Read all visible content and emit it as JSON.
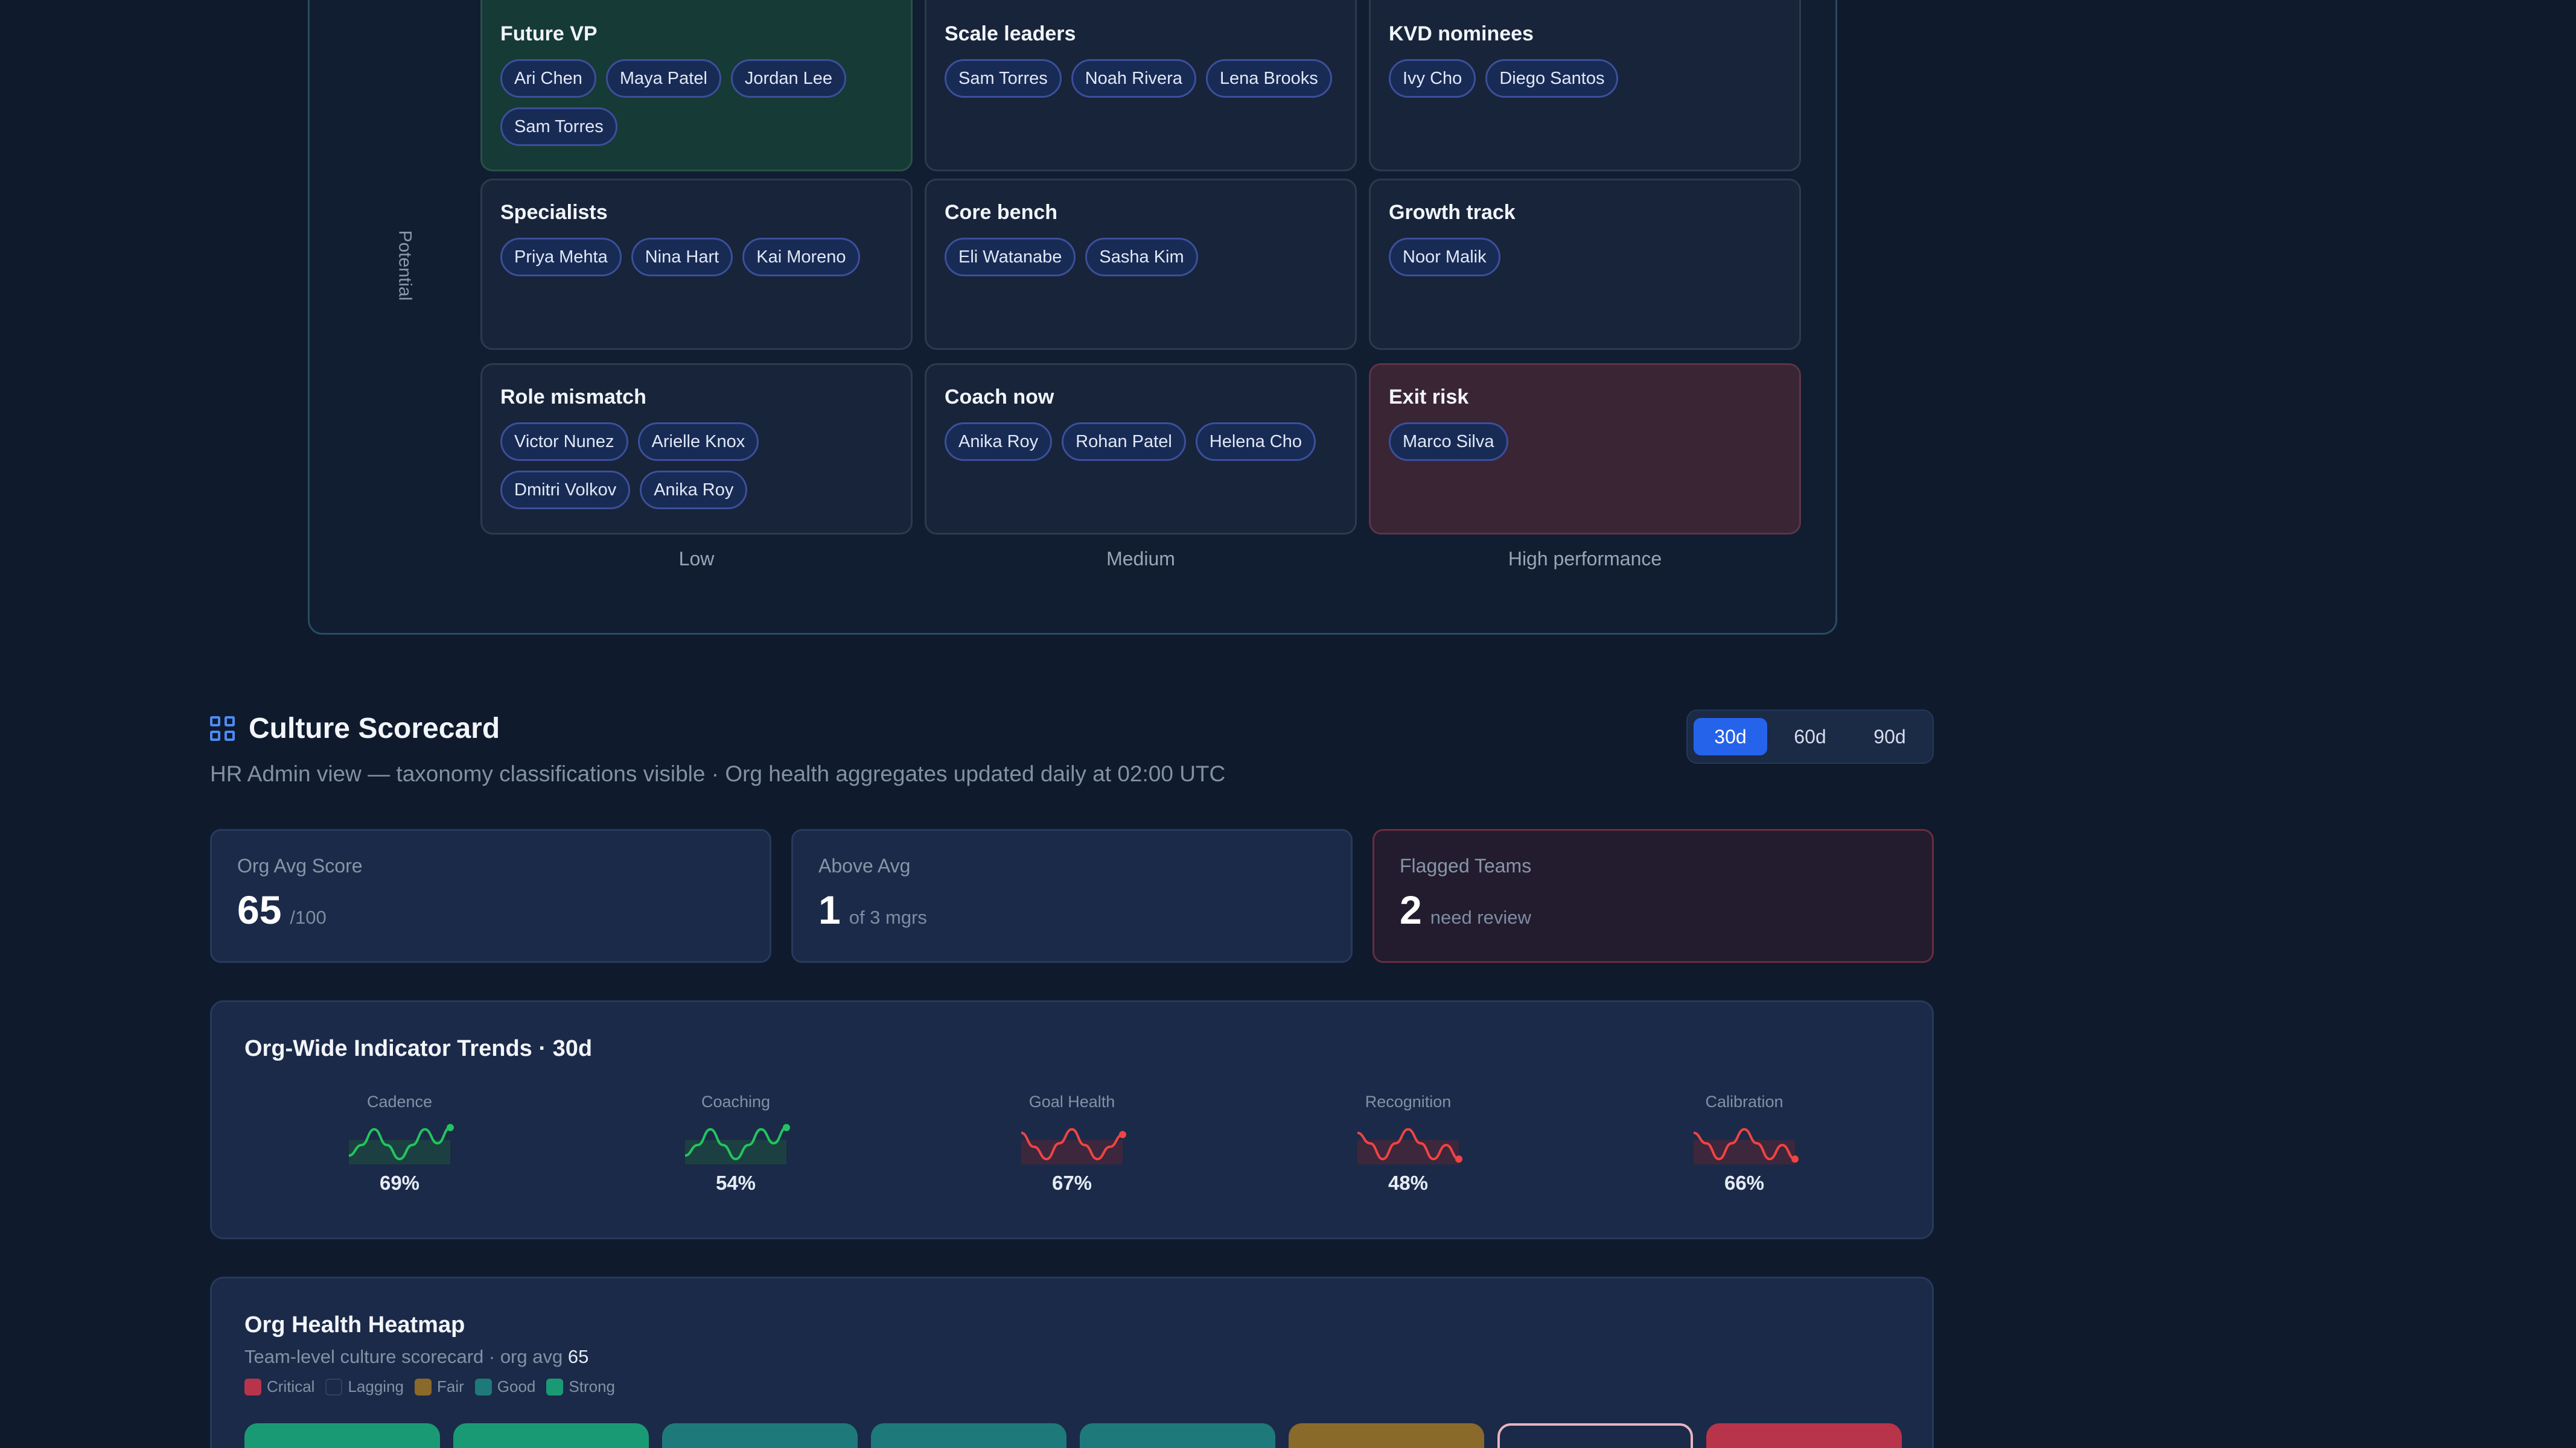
{
  "ninebox": {
    "potential_label": "Potential",
    "rows": [
      [
        {
          "title": "Future VP",
          "people": [
            "Ari Chen",
            "Maya Patel",
            "Jordan Lee",
            "Sam Torres"
          ],
          "tone": "green"
        },
        {
          "title": "Scale leaders",
          "people": [
            "Sam Torres",
            "Noah Rivera",
            "Lena Brooks"
          ],
          "tone": "default"
        },
        {
          "title": "KVD nominees",
          "people": [
            "Ivy Cho",
            "Diego Santos"
          ],
          "tone": "default"
        }
      ],
      [
        {
          "title": "Specialists",
          "people": [
            "Priya Mehta",
            "Nina Hart",
            "Kai Moreno"
          ],
          "tone": "default"
        },
        {
          "title": "Core bench",
          "people": [
            "Eli Watanabe",
            "Sasha Kim"
          ],
          "tone": "default"
        },
        {
          "title": "Growth track",
          "people": [
            "Noor Malik"
          ],
          "tone": "default"
        }
      ],
      [
        {
          "title": "Role mismatch",
          "people": [
            "Victor Nunez",
            "Arielle Knox",
            "Dmitri Volkov",
            "Anika Roy"
          ],
          "tone": "default"
        },
        {
          "title": "Coach now",
          "people": [
            "Anika Roy",
            "Rohan Patel",
            "Helena Cho"
          ],
          "tone": "default"
        },
        {
          "title": "Exit risk",
          "people": [
            "Marco Silva"
          ],
          "tone": "red"
        }
      ]
    ],
    "columns": [
      "Low",
      "Medium",
      "High performance"
    ]
  },
  "scorecard": {
    "title": "Culture Scorecard",
    "subtitle": "HR Admin view — taxonomy classifications visible · Org health aggregates updated daily at 02:00 UTC",
    "ranges": [
      "30d",
      "60d",
      "90d"
    ],
    "active_range": "30d"
  },
  "kpis": [
    {
      "label": "Org Avg Score",
      "value": "65",
      "unit": "/100",
      "flag": false
    },
    {
      "label": "Above Avg",
      "value": "1",
      "unit": "of 3 mgrs",
      "flag": false
    },
    {
      "label": "Flagged Teams",
      "value": "2",
      "unit": "need review",
      "flag": true
    }
  ],
  "trends": {
    "title": "Org-Wide Indicator Trends · 30d",
    "indicators": [
      {
        "label": "Cadence",
        "value": "69%",
        "color": "#22c55e",
        "fill": "#1c4a3f",
        "shape": "up"
      },
      {
        "label": "Coaching",
        "value": "54%",
        "color": "#22c55e",
        "fill": "#1c4a3f",
        "shape": "up"
      },
      {
        "label": "Goal Health",
        "value": "67%",
        "color": "#ef4444",
        "fill": "#4a2738",
        "shape": "mid"
      },
      {
        "label": "Recognition",
        "value": "48%",
        "color": "#ef4444",
        "fill": "#4a2738",
        "shape": "down"
      },
      {
        "label": "Calibration",
        "value": "66%",
        "color": "#ef4444",
        "fill": "#4a2738",
        "shape": "down"
      }
    ]
  },
  "heatmap": {
    "title": "Org Health Heatmap",
    "subtitle_prefix": "Team-level culture scorecard · org avg ",
    "subtitle_value": "65",
    "legend": [
      {
        "label": "Critical",
        "color": "#b8344a"
      },
      {
        "label": "Lagging",
        "color": "#1b2a48"
      },
      {
        "label": "Fair",
        "color": "#8a6a2a"
      },
      {
        "label": "Good",
        "color": "#1e7a7a"
      },
      {
        "label": "Strong",
        "color": "#1a9a74"
      }
    ],
    "tiles": [
      {
        "color": "#1a9a74",
        "outline": false
      },
      {
        "color": "#1a9a74",
        "outline": false
      },
      {
        "color": "#1e7a7a",
        "outline": false
      },
      {
        "color": "#1e7a7a",
        "outline": false
      },
      {
        "color": "#1e7a7a",
        "outline": false
      },
      {
        "color": "#8a6a2a",
        "outline": false
      },
      {
        "color": "#1b2a48",
        "outline": true
      },
      {
        "color": "#b8344a",
        "outline": false
      }
    ]
  }
}
